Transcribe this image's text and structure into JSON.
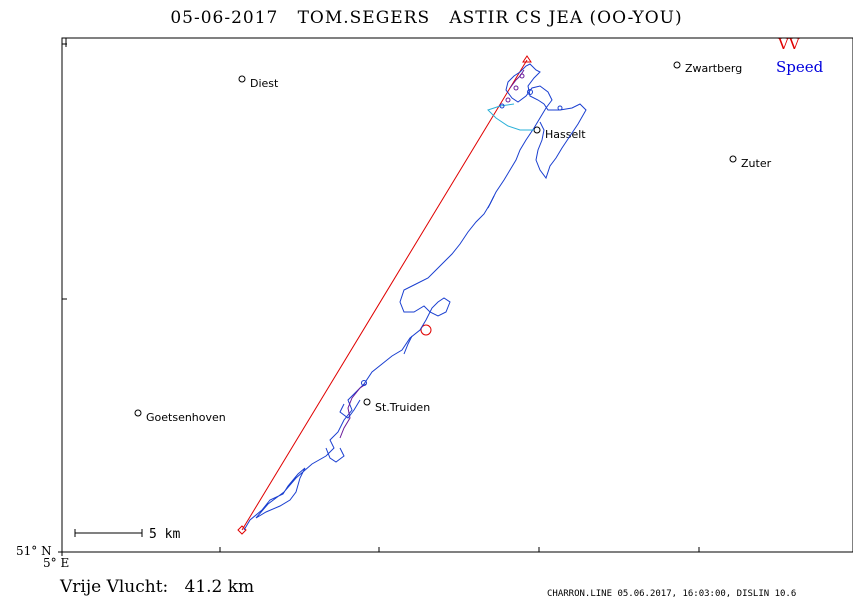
{
  "header": {
    "date": "05-06-2017",
    "pilot": "TOM.SEGERS",
    "glider": "ASTIR CS JEA (OO-YOU)"
  },
  "legend": {
    "vv_label": "VV",
    "vv_color": "#e00000",
    "speed_label": "Speed",
    "speed_color": "#0000dd"
  },
  "axes": {
    "lat_label": "51° N",
    "lon_label": "5° E"
  },
  "scale_bar": {
    "label": "5 km"
  },
  "towns": [
    {
      "name": "Diest"
    },
    {
      "name": "Zwartberg"
    },
    {
      "name": "Hasselt"
    },
    {
      "name": "Zuter"
    },
    {
      "name": "St.Truiden"
    },
    {
      "name": "Goetsenhoven"
    }
  ],
  "summary": {
    "distance_label": "Vrije Vlucht:",
    "distance_value": "41.2 km"
  },
  "footer": {
    "text": "CHARRON.LINE 05.06.2017, 16:03:00, DISLIN 10.6"
  }
}
